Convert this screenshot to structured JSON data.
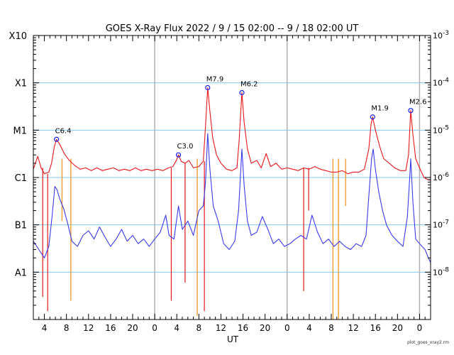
{
  "chart_data": {
    "type": "line",
    "title": "GOES X-Ray Flux   2022 /  9 / 15   02:00 --  9 / 18   02:00   UT",
    "xlabel": "UT",
    "footer": "plot_goes_xray2.rm",
    "x_tick_labels": [
      "4",
      "8",
      "12",
      "16",
      "20",
      "0",
      "4",
      "8",
      "12",
      "16",
      "20",
      "0",
      "4",
      "8",
      "12",
      "16",
      "20",
      "0"
    ],
    "x_range_hours": [
      2,
      74
    ],
    "day_boundaries_hours": [
      24,
      48,
      72
    ],
    "y_scale": "log",
    "ylim": [
      1e-09,
      0.001
    ],
    "left_labels": [
      {
        "label": "X10",
        "value": 0.001
      },
      {
        "label": "X1",
        "value": 0.0001
      },
      {
        "label": "M1",
        "value": 1e-05
      },
      {
        "label": "C1",
        "value": 1e-06
      },
      {
        "label": "B1",
        "value": 1e-07
      },
      {
        "label": "A1",
        "value": 1e-08
      }
    ],
    "right_labels": [
      {
        "label": "10",
        "exp": "-3",
        "value": 0.001
      },
      {
        "label": "10",
        "exp": "-4",
        "value": 0.0001
      },
      {
        "label": "10",
        "exp": "-5",
        "value": 1e-05
      },
      {
        "label": "10",
        "exp": "-6",
        "value": 1e-06
      },
      {
        "label": "10",
        "exp": "-7",
        "value": 1e-07
      },
      {
        "label": "10",
        "exp": "-8",
        "value": 1e-08
      }
    ],
    "colors": {
      "long": "#e8161a",
      "short": "#3a3aee",
      "gaps": "#ee8e1a",
      "grid": "#7ec8f0",
      "day": "#b0b0b0"
    },
    "flares": [
      {
        "label": "C6.4",
        "t": 6.2,
        "value": 6.4e-06
      },
      {
        "label": "C3.0",
        "t": 28.3,
        "value": 3e-06
      },
      {
        "label": "M7.9",
        "t": 33.6,
        "value": 7.9e-05
      },
      {
        "label": "M6.2",
        "t": 39.8,
        "value": 6.2e-05
      },
      {
        "label": "M1.9",
        "t": 63.5,
        "value": 1.9e-05
      },
      {
        "label": "M2.6",
        "t": 70.4,
        "value": 2.6e-05
      }
    ],
    "series": [
      {
        "key": "long",
        "color": "#e8161a",
        "points": [
          [
            2,
            1.5e-06
          ],
          [
            2.8,
            2.8e-06
          ],
          [
            3.4,
            1.6e-06
          ],
          [
            4,
            1.2e-06
          ],
          [
            4.8,
            1.3e-06
          ],
          [
            5.3,
            2e-06
          ],
          [
            5.8,
            4.5e-06
          ],
          [
            6.2,
            6.4e-06
          ],
          [
            6.8,
            5e-06
          ],
          [
            7.6,
            3.2e-06
          ],
          [
            8.5,
            2.3e-06
          ],
          [
            9.5,
            1.8e-06
          ],
          [
            10.5,
            1.5e-06
          ],
          [
            11.5,
            1.6e-06
          ],
          [
            12.5,
            1.4e-06
          ],
          [
            13.5,
            1.6e-06
          ],
          [
            14.5,
            1.4e-06
          ],
          [
            15.5,
            1.5e-06
          ],
          [
            16.5,
            1.6e-06
          ],
          [
            17.5,
            1.4e-06
          ],
          [
            18.5,
            1.5e-06
          ],
          [
            19.5,
            1.4e-06
          ],
          [
            20.5,
            1.6e-06
          ],
          [
            21.5,
            1.4e-06
          ],
          [
            22.5,
            1.5e-06
          ],
          [
            23.5,
            1.4e-06
          ],
          [
            24.5,
            1.5e-06
          ],
          [
            25.5,
            1.4e-06
          ],
          [
            26.5,
            1.6e-06
          ],
          [
            27.3,
            1.7e-06
          ],
          [
            28,
            2.4e-06
          ],
          [
            28.3,
            3e-06
          ],
          [
            28.8,
            2.2e-06
          ],
          [
            29.5,
            2e-06
          ],
          [
            30.2,
            2.3e-06
          ],
          [
            31,
            1.6e-06
          ],
          [
            32,
            1.7e-06
          ],
          [
            32.8,
            2.2e-06
          ],
          [
            33.2,
            1.2e-05
          ],
          [
            33.6,
            7.9e-05
          ],
          [
            34,
            2.5e-05
          ],
          [
            34.5,
            7e-06
          ],
          [
            35.2,
            3e-06
          ],
          [
            36,
            2e-06
          ],
          [
            37,
            1.5e-06
          ],
          [
            38,
            1.4e-06
          ],
          [
            38.9,
            1.6e-06
          ],
          [
            39.3,
            6e-06
          ],
          [
            39.8,
            6.2e-05
          ],
          [
            40.2,
            1.5e-05
          ],
          [
            40.8,
            4e-06
          ],
          [
            41.5,
            2e-06
          ],
          [
            42.5,
            2.3e-06
          ],
          [
            43.3,
            1.6e-06
          ],
          [
            44.2,
            3.2e-06
          ],
          [
            45,
            1.7e-06
          ],
          [
            46,
            2e-06
          ],
          [
            47,
            1.5e-06
          ],
          [
            48,
            1.6e-06
          ],
          [
            49,
            1.5e-06
          ],
          [
            50,
            1.4e-06
          ],
          [
            51,
            1.6e-06
          ],
          [
            52,
            1.5e-06
          ],
          [
            53,
            1.7e-06
          ],
          [
            54,
            1.5e-06
          ],
          [
            55,
            1.4e-06
          ],
          [
            56,
            1.3e-06
          ],
          [
            57,
            1.3e-06
          ],
          [
            58,
            1.4e-06
          ],
          [
            59,
            1.2e-06
          ],
          [
            60,
            1.3e-06
          ],
          [
            61,
            1.3e-06
          ],
          [
            62,
            1.5e-06
          ],
          [
            62.8,
            4e-06
          ],
          [
            63.2,
            1.3e-05
          ],
          [
            63.5,
            1.9e-05
          ],
          [
            64,
            1e-05
          ],
          [
            64.8,
            4.5e-06
          ],
          [
            65.5,
            2.5e-06
          ],
          [
            66.5,
            2e-06
          ],
          [
            67.5,
            1.6e-06
          ],
          [
            68.5,
            1.4e-06
          ],
          [
            69.5,
            1.4e-06
          ],
          [
            70,
            3e-06
          ],
          [
            70.4,
            2.6e-05
          ],
          [
            70.8,
            8e-06
          ],
          [
            71.3,
            2.5e-06
          ],
          [
            72,
            1.6e-06
          ],
          [
            72.8,
            1e-06
          ],
          [
            73.5,
            9e-07
          ],
          [
            74,
            8.8e-07
          ]
        ]
      },
      {
        "key": "short",
        "color": "#3a3aee",
        "points": [
          [
            2,
            4.5e-08
          ],
          [
            3,
            3e-08
          ],
          [
            4,
            2e-08
          ],
          [
            4.8,
            3.5e-08
          ],
          [
            5.4,
            1.5e-07
          ],
          [
            5.9,
            6.5e-07
          ],
          [
            6.3,
            5.5e-07
          ],
          [
            6.8,
            3.5e-07
          ],
          [
            7.5,
            2.2e-07
          ],
          [
            8.2,
            1.1e-07
          ],
          [
            9,
            4.5e-08
          ],
          [
            10,
            3.5e-08
          ],
          [
            11,
            6e-08
          ],
          [
            12,
            7.5e-08
          ],
          [
            13,
            5e-08
          ],
          [
            14,
            9e-08
          ],
          [
            15,
            5.5e-08
          ],
          [
            16,
            3.5e-08
          ],
          [
            17,
            5e-08
          ],
          [
            18,
            8e-08
          ],
          [
            19,
            4.5e-08
          ],
          [
            20,
            6e-08
          ],
          [
            21,
            4e-08
          ],
          [
            22,
            5e-08
          ],
          [
            23,
            3.5e-08
          ],
          [
            24,
            5e-08
          ],
          [
            25,
            7e-08
          ],
          [
            26,
            1.6e-07
          ],
          [
            26.6,
            6e-08
          ],
          [
            27.5,
            5e-08
          ],
          [
            28.3,
            2.5e-07
          ],
          [
            29,
            8e-08
          ],
          [
            30,
            1.2e-07
          ],
          [
            31,
            6e-08
          ],
          [
            32,
            2e-07
          ],
          [
            32.8,
            2.5e-07
          ],
          [
            33.2,
            8e-07
          ],
          [
            33.6,
            8.5e-06
          ],
          [
            34,
            1.5e-06
          ],
          [
            34.6,
            2.5e-07
          ],
          [
            35.5,
            1.2e-07
          ],
          [
            36.5,
            4e-08
          ],
          [
            37.5,
            3e-08
          ],
          [
            38.5,
            4.5e-08
          ],
          [
            39.2,
            2e-07
          ],
          [
            39.8,
            4e-06
          ],
          [
            40.2,
            7e-07
          ],
          [
            40.8,
            1.2e-07
          ],
          [
            41.5,
            6e-08
          ],
          [
            42.5,
            7e-08
          ],
          [
            43.5,
            1.5e-07
          ],
          [
            44.5,
            8e-08
          ],
          [
            45.5,
            4e-08
          ],
          [
            46.5,
            5e-08
          ],
          [
            47.5,
            3.5e-08
          ],
          [
            48.5,
            4e-08
          ],
          [
            49.5,
            5e-08
          ],
          [
            50.5,
            6e-08
          ],
          [
            51.5,
            5e-08
          ],
          [
            52.5,
            1.6e-07
          ],
          [
            53.5,
            7e-08
          ],
          [
            54.5,
            4e-08
          ],
          [
            55.5,
            5e-08
          ],
          [
            56.5,
            3.5e-08
          ],
          [
            57.5,
            4.5e-08
          ],
          [
            58.5,
            3.5e-08
          ],
          [
            59.5,
            3e-08
          ],
          [
            60.5,
            4e-08
          ],
          [
            61.5,
            3.5e-08
          ],
          [
            62.3,
            6e-08
          ],
          [
            62.8,
            4e-07
          ],
          [
            63.3,
            2.5e-06
          ],
          [
            63.6,
            4e-06
          ],
          [
            64,
            1.5e-06
          ],
          [
            64.6,
            5e-07
          ],
          [
            65.3,
            2e-07
          ],
          [
            66,
            1e-07
          ],
          [
            67,
            6e-08
          ],
          [
            68,
            4.5e-08
          ],
          [
            69,
            3.5e-08
          ],
          [
            69.8,
            1.5e-07
          ],
          [
            70.2,
            9e-07
          ],
          [
            70.4,
            2.5e-06
          ],
          [
            70.8,
            3e-07
          ],
          [
            71.3,
            5e-08
          ],
          [
            72,
            4e-08
          ],
          [
            73,
            3e-08
          ],
          [
            73.6,
            2e-08
          ],
          [
            74,
            1.6e-08
          ]
        ]
      }
    ],
    "dropouts": [
      {
        "t": 3.7,
        "series": "long",
        "to": 3e-09
      },
      {
        "t": 4.6,
        "series": "long",
        "to": 1.5e-09
      },
      {
        "t": 7.2,
        "series": "gaps",
        "to": 1.2e-07
      },
      {
        "t": 8.8,
        "series": "gaps",
        "to": 2.5e-09
      },
      {
        "t": 27.0,
        "series": "long",
        "to": 2.5e-09
      },
      {
        "t": 29.5,
        "series": "long",
        "to": 6e-09
      },
      {
        "t": 31.7,
        "series": "gaps",
        "to": 1.2e-09
      },
      {
        "t": 33.0,
        "series": "long",
        "to": 1.5e-09
      },
      {
        "t": 51.0,
        "series": "long",
        "to": 4e-09
      },
      {
        "t": 51.9,
        "series": "long",
        "to": 2e-07
      },
      {
        "t": 56.3,
        "series": "gaps",
        "to": 1e-09
      },
      {
        "t": 57.3,
        "series": "gaps",
        "to": 1e-09
      },
      {
        "t": 58.6,
        "series": "gaps",
        "to": 2.5e-07
      }
    ]
  }
}
